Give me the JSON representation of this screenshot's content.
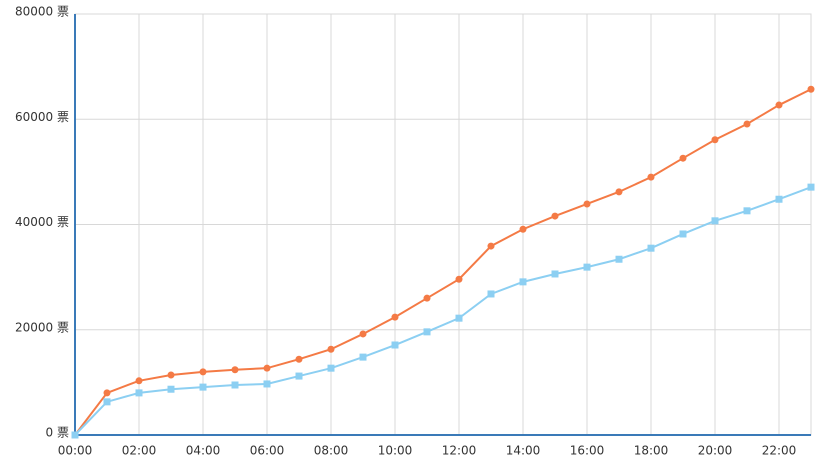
{
  "chart_data": {
    "type": "line",
    "categories": [
      "00:00",
      null,
      "02:00",
      null,
      "04:00",
      null,
      "06:00",
      null,
      "08:00",
      null,
      "10:00",
      null,
      "12:00",
      null,
      "14:00",
      null,
      "16:00",
      null,
      "18:00",
      null,
      "20:00",
      null,
      "22:00",
      null
    ],
    "series": [
      {
        "color": "#f47a45",
        "marker": "circle",
        "values": [
          0,
          8000,
          10300,
          11400,
          12000,
          12400,
          12700,
          14400,
          16300,
          19200,
          22400,
          26000,
          29600,
          35900,
          39100,
          41600,
          43900,
          46200,
          49000,
          52600,
          56100,
          59100,
          62700,
          65700
        ]
      },
      {
        "color": "#8ccff2",
        "marker": "square",
        "values": [
          0,
          6300,
          8000,
          8700,
          9100,
          9500,
          9700,
          11200,
          12700,
          14800,
          17100,
          19600,
          22200,
          26800,
          29100,
          30600,
          31900,
          33400,
          35500,
          38200,
          40700,
          42600,
          44800,
          47100
        ]
      }
    ],
    "ylim": [
      0,
      80000
    ],
    "yticks": [
      {
        "value": 0,
        "label": "0 票"
      },
      {
        "value": 20000,
        "label": "20000 票"
      },
      {
        "value": 40000,
        "label": "40000 票"
      },
      {
        "value": 60000,
        "label": "60000 票"
      },
      {
        "value": 80000,
        "label": "80000 票"
      }
    ],
    "grid": true
  }
}
